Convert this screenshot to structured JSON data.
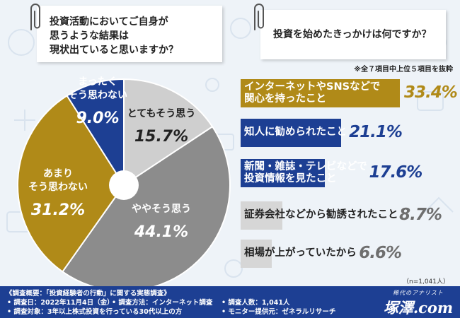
{
  "colors": {
    "dark_blue": "#1d3f93",
    "gold": "#b08a18",
    "dark_gray": "#8c8c8c",
    "light_gray": "#cfcfcf",
    "white": "#ffffff"
  },
  "chart_data": [
    {
      "type": "pie",
      "title": "投資活動においてご自身が思うような結果は現状出ていると思いますか？",
      "title_lines": [
        "投資活動においてご自身が",
        "思うような結果は",
        "現状出ていると思いますか？"
      ],
      "unit": "%",
      "slices": [
        {
          "label": "とてもそう思う",
          "label_lines": [
            "とてもそう思う"
          ],
          "value": 15.7,
          "value_text": "15.7%",
          "color": "#cfcfcf",
          "label_color": "#222222"
        },
        {
          "label": "ややそう思う",
          "label_lines": [
            "ややそう思う"
          ],
          "value": 44.1,
          "value_text": "44.1%",
          "color": "#8c8c8c",
          "label_color": "#ffffff"
        },
        {
          "label": "あまりそう思わない",
          "label_lines": [
            "あまり",
            "そう思わない"
          ],
          "value": 31.2,
          "value_text": "31.2%",
          "color": "#b08a18",
          "label_color": "#ffffff"
        },
        {
          "label": "まったくそう思わない",
          "label_lines": [
            "まったく",
            "そう思わない"
          ],
          "value": 9.0,
          "value_text": "9.0%",
          "color": "#1d3f93",
          "label_color": "#ffffff"
        }
      ]
    },
    {
      "type": "bar",
      "orientation": "horizontal",
      "title": "投資を始めたきっかけは何ですか？",
      "note": "※全７項目中上位５項目を抜粋",
      "unit": "%",
      "categories": [
        "インターネットやSNSなどで関心を持ったこと",
        "知人に勧められたこと",
        "新聞・雑誌・テレビなどで投資情報を見たこと",
        "証券会社などから勧誘されたこと",
        "相場が上がっていたから"
      ],
      "category_lines": [
        [
          "インターネットやSNSなどで",
          "関心を持ったこと"
        ],
        [
          "知人に勧められたこと"
        ],
        [
          "新聞・雑誌・テレビなどで",
          "投資情報を見たこと"
        ],
        [
          "証券会社などから勧誘されたこと"
        ],
        [
          "相場が上がっていたから"
        ]
      ],
      "values": [
        33.4,
        21.1,
        17.6,
        8.7,
        6.6
      ],
      "value_texts": [
        "33.4%",
        "21.1%",
        "17.6%",
        "8.7%",
        "6.6%"
      ],
      "colors": [
        "#b08a18",
        "#1d3f93",
        "#1d3f93",
        "#d6d6d6",
        "#d6d6d6"
      ],
      "label_colors": [
        "#ffffff",
        "#ffffff",
        "#ffffff",
        "#222222",
        "#222222"
      ],
      "value_colors": [
        "#b08a18",
        "#1d3f93",
        "#1d3f93",
        "#6e6e6e",
        "#6e6e6e"
      ]
    }
  ],
  "sample_size": "（n=1,041人）",
  "footer": {
    "title": "《調査概要：「投資経験者の行動」に関する実態調査》",
    "items": [
      "• 調査日：2022年11月4日（金）",
      "• 調査方法：インターネット調査",
      "• 調査人数：1,041人",
      "• 調査対象：3年以上株式投資を行っている30代以上の方",
      "• モニター提供元：ゼネラルリサーチ"
    ]
  },
  "brand": {
    "tagline": "稀代のアナリスト",
    "logo": "塚澤.com"
  }
}
